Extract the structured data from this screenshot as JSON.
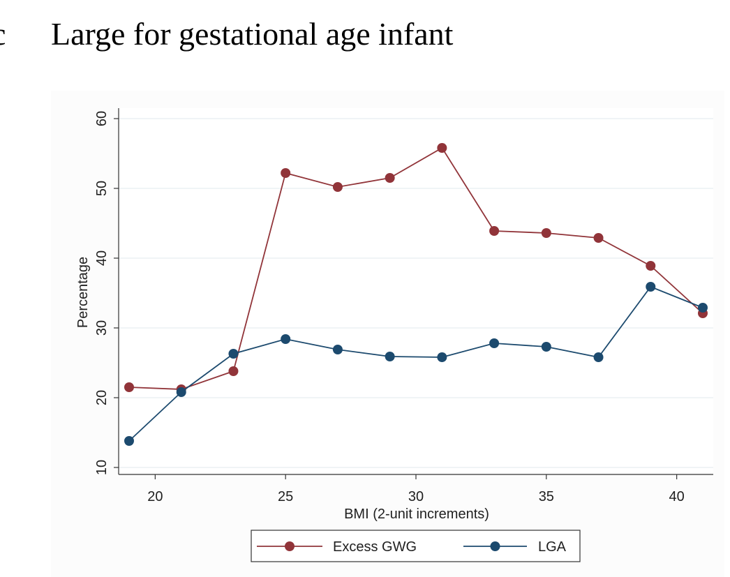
{
  "figure": {
    "title": "Large for gestational age infant",
    "panel_letter": "c"
  },
  "chart_data": {
    "type": "line",
    "title": "Large for gestational age infant",
    "xlabel": "BMI (2-unit increments)",
    "ylabel": "Percentage",
    "xlim": [
      19,
      41
    ],
    "ylim": [
      9,
      61.5
    ],
    "x_ticks": [
      20,
      25,
      30,
      35,
      40
    ],
    "y_ticks": [
      10,
      20,
      30,
      40,
      50,
      60
    ],
    "grid": true,
    "legend_position": "bottom",
    "x": [
      19,
      21,
      23,
      25,
      27,
      29,
      31,
      33,
      35,
      37,
      39,
      41
    ],
    "series": [
      {
        "name": "Excess GWG",
        "color": "#913439",
        "values": [
          21.5,
          21.2,
          23.8,
          52.2,
          50.2,
          51.5,
          55.8,
          43.9,
          43.6,
          42.9,
          38.9,
          32.1
        ]
      },
      {
        "name": "LGA",
        "color": "#1c4a6e",
        "values": [
          13.8,
          20.8,
          26.3,
          28.4,
          26.9,
          25.9,
          25.8,
          27.8,
          27.3,
          25.8,
          35.9,
          32.9
        ]
      }
    ]
  }
}
